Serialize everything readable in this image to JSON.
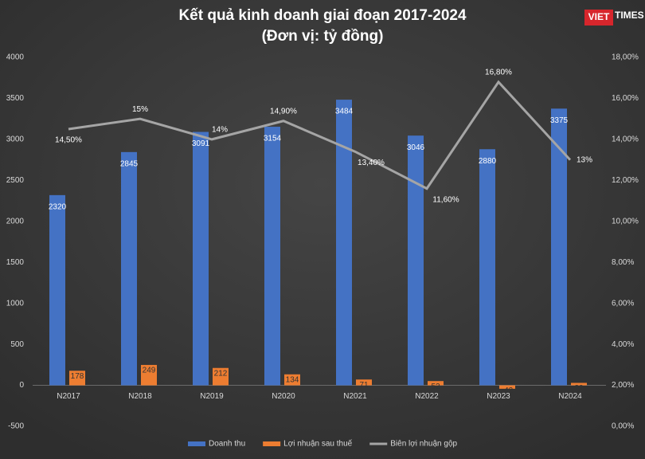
{
  "chart_data": {
    "type": "bar",
    "title": "Kết quả kinh doanh giai đoạn 2017-2024",
    "subtitle": "(Đơn vị: tỷ đồng)",
    "logo": [
      "VIET",
      "TIMES"
    ],
    "categories": [
      "N2017",
      "N2018",
      "N2019",
      "N2020",
      "N2021",
      "N2022",
      "N2023",
      "N2024"
    ],
    "series": [
      {
        "name": "Doanh thu",
        "type": "bar",
        "color": "#4472c4",
        "values": [
          2320,
          2845,
          3091,
          3154,
          3484,
          3046,
          2880,
          3375
        ]
      },
      {
        "name": "Lợi nhuận sau thuế",
        "type": "bar",
        "color": "#ed7d31",
        "values": [
          178,
          249,
          212,
          134,
          71,
          52,
          -42,
          30
        ]
      },
      {
        "name": "Biên lợi nhuận gộp",
        "type": "line",
        "axis": "y2",
        "color": "#a5a5a5",
        "values": [
          14.5,
          15,
          14,
          14.9,
          13.4,
          11.6,
          16.8,
          13
        ],
        "value_labels": [
          "14,50%",
          "15%",
          "14%",
          "14,90%",
          "13,40%",
          "11,60%",
          "16,80%",
          "13%"
        ]
      }
    ],
    "ylim": [
      -500,
      4000
    ],
    "yticks": [
      -500,
      0,
      500,
      1000,
      1500,
      2000,
      2500,
      3000,
      3500,
      4000
    ],
    "y2lim": [
      0,
      18
    ],
    "y2ticks": [
      {
        "value": 0,
        "label": "0,00%"
      },
      {
        "value": 2,
        "label": "2,00%"
      },
      {
        "value": 4,
        "label": "4,00%"
      },
      {
        "value": 6,
        "label": "6,00%"
      },
      {
        "value": 8,
        "label": "8,00%"
      },
      {
        "value": 10,
        "label": "10,00%"
      },
      {
        "value": 12,
        "label": "12,00%"
      },
      {
        "value": 14,
        "label": "14,00%"
      },
      {
        "value": 16,
        "label": "16,00%"
      },
      {
        "value": 18,
        "label": "18,00%"
      }
    ],
    "grid": false,
    "legend": "bottom"
  }
}
